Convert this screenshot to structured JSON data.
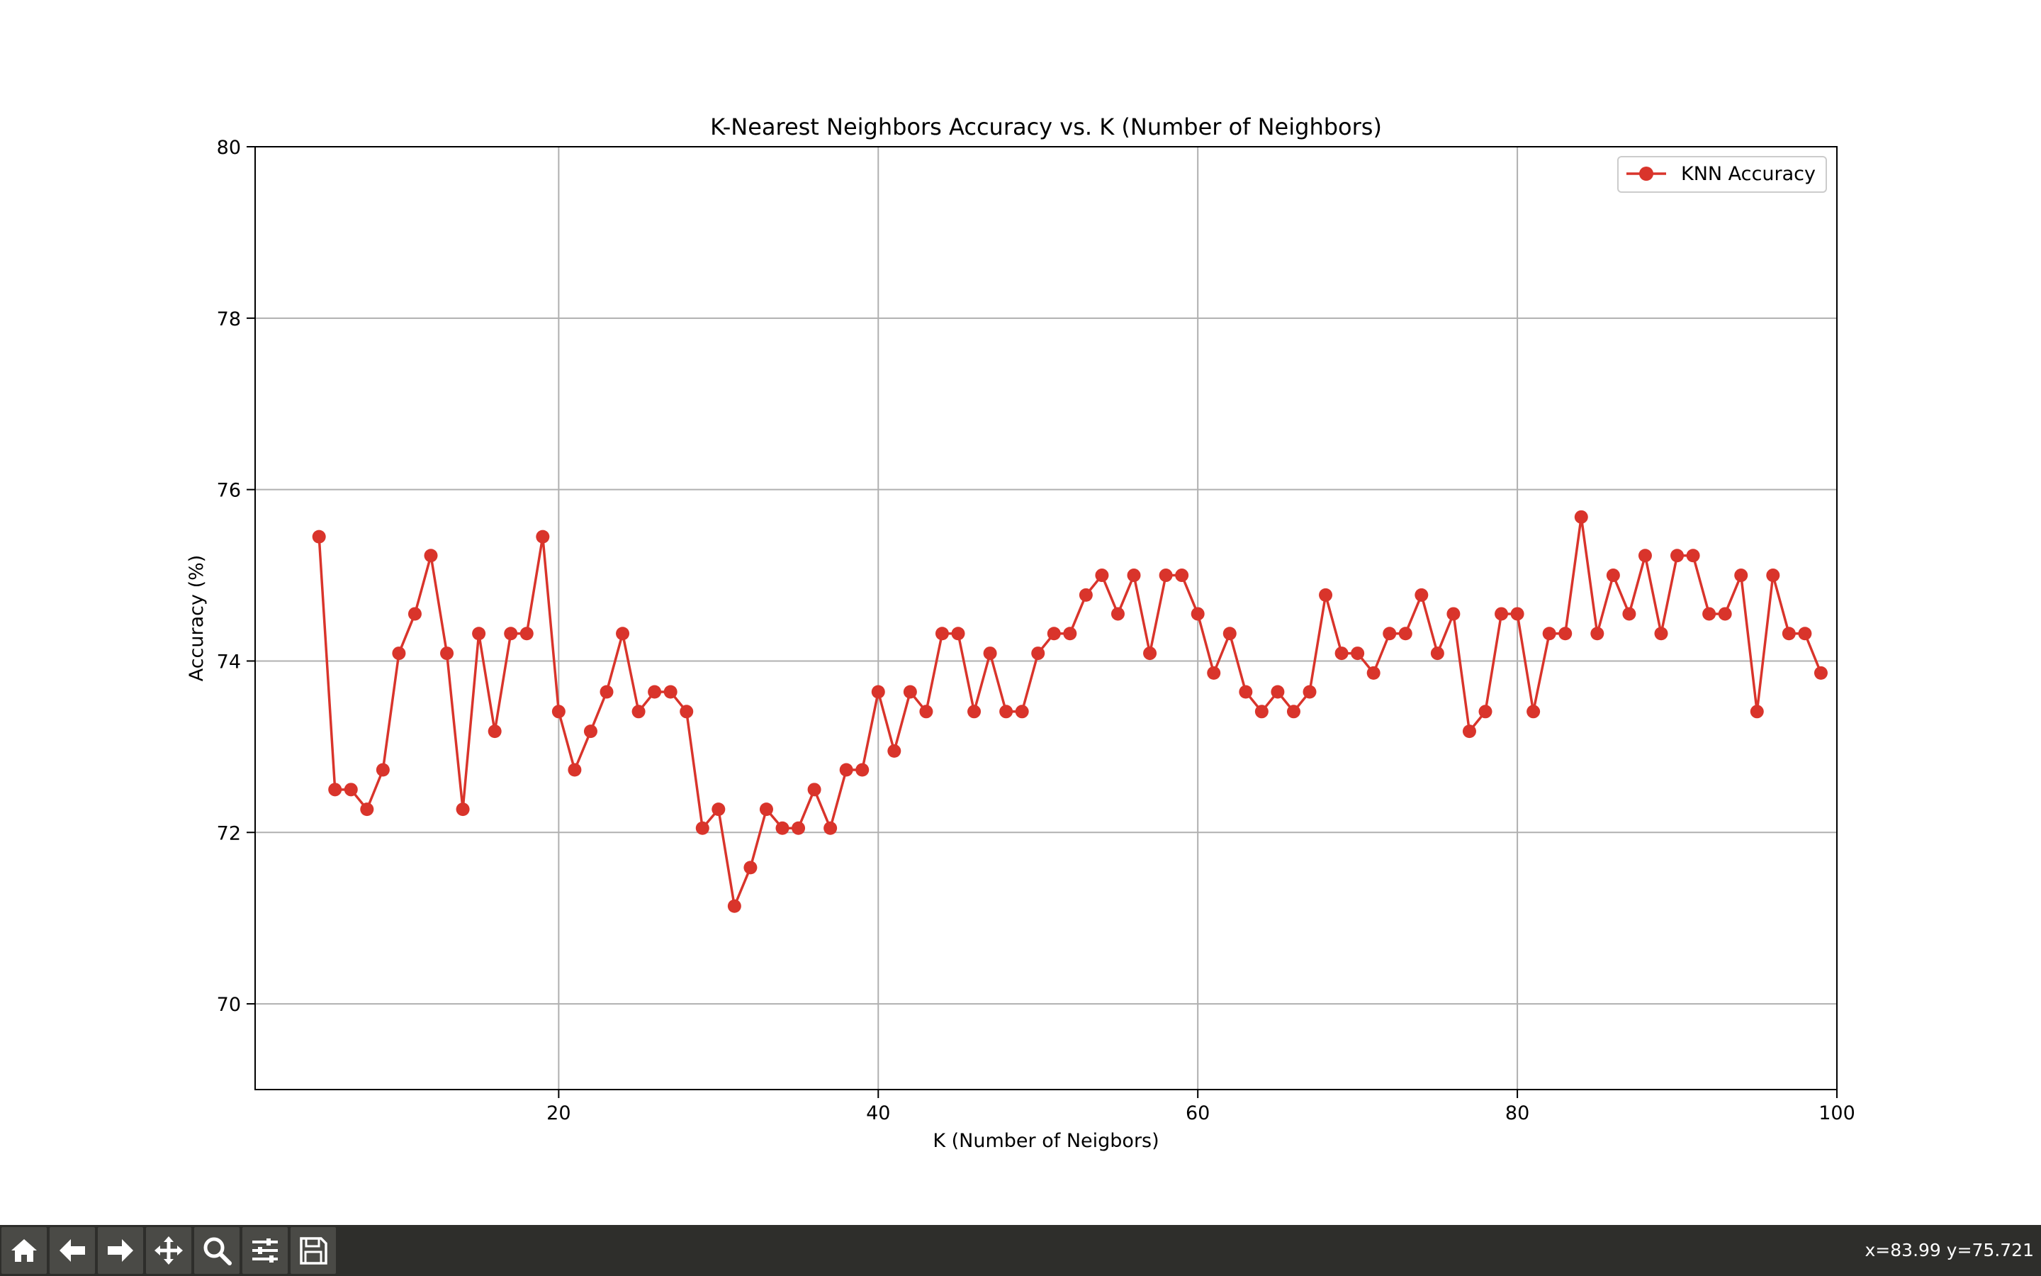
{
  "chart_data": {
    "type": "line",
    "title": "K-Nearest Neighbors Accuracy vs. K (Number of Neighbors)",
    "xlabel": "K (Number of Neigbors)",
    "ylabel": "Accuracy (%)",
    "xlim": [
      1,
      100
    ],
    "ylim": [
      69,
      80
    ],
    "xticks": [
      20,
      40,
      60,
      80,
      100
    ],
    "yticks": [
      70,
      72,
      74,
      76,
      78,
      80
    ],
    "xtick_labels": [
      "20",
      "40",
      "60",
      "80",
      "100"
    ],
    "ytick_labels": [
      "70",
      "72",
      "74",
      "76",
      "78",
      "80"
    ],
    "grid": true,
    "legend_position": "top-right",
    "series": [
      {
        "name": "KNN Accuracy",
        "color": "#d9342b",
        "marker": "circle",
        "x": [
          5,
          6,
          7,
          8,
          9,
          10,
          11,
          12,
          13,
          14,
          15,
          16,
          17,
          18,
          19,
          20,
          21,
          22,
          23,
          24,
          25,
          26,
          27,
          28,
          29,
          30,
          31,
          32,
          33,
          34,
          35,
          36,
          37,
          38,
          39,
          40,
          41,
          42,
          43,
          44,
          45,
          46,
          47,
          48,
          49,
          50,
          51,
          52,
          53,
          54,
          55,
          56,
          57,
          58,
          59,
          60,
          61,
          62,
          63,
          64,
          65,
          66,
          67,
          68,
          69,
          70,
          71,
          72,
          73,
          74,
          75,
          76,
          77,
          78,
          79,
          80,
          81,
          82,
          83,
          84,
          85,
          86,
          87,
          88,
          89,
          90,
          91,
          92,
          93,
          94,
          95,
          96,
          97,
          98,
          99
        ],
        "y": [
          75.45,
          72.5,
          72.5,
          72.27,
          72.73,
          74.09,
          74.55,
          75.23,
          74.09,
          72.27,
          74.32,
          73.18,
          74.32,
          74.32,
          75.45,
          73.41,
          72.73,
          73.18,
          73.64,
          74.32,
          73.41,
          73.64,
          73.64,
          73.41,
          72.05,
          72.27,
          71.14,
          71.59,
          72.27,
          72.05,
          72.05,
          72.5,
          72.05,
          72.73,
          72.73,
          73.64,
          72.95,
          73.64,
          73.41,
          74.32,
          74.32,
          73.41,
          74.09,
          73.41,
          73.41,
          74.09,
          74.32,
          74.32,
          74.77,
          75.0,
          74.55,
          75.0,
          74.09,
          75.0,
          75.0,
          74.55,
          73.86,
          74.32,
          73.64,
          73.41,
          73.64,
          73.41,
          73.64,
          74.77,
          74.09,
          74.09,
          73.86,
          74.32,
          74.32,
          74.77,
          74.09,
          74.55,
          73.18,
          73.41,
          74.55,
          74.55,
          73.41,
          74.32,
          74.32,
          75.68,
          74.32,
          75.0,
          74.55,
          75.23,
          74.32,
          75.23,
          75.23,
          74.55,
          74.55,
          75.0,
          73.41,
          75.0,
          74.32,
          74.32,
          73.86
        ]
      }
    ]
  },
  "toolbar": {
    "buttons": [
      {
        "name": "home-icon"
      },
      {
        "name": "back-arrow-icon"
      },
      {
        "name": "forward-arrow-icon"
      },
      {
        "name": "pan-icon"
      },
      {
        "name": "zoom-icon"
      },
      {
        "name": "configure-subplots-icon"
      },
      {
        "name": "save-icon"
      }
    ],
    "coord_readout": "x=83.99 y=75.721"
  }
}
